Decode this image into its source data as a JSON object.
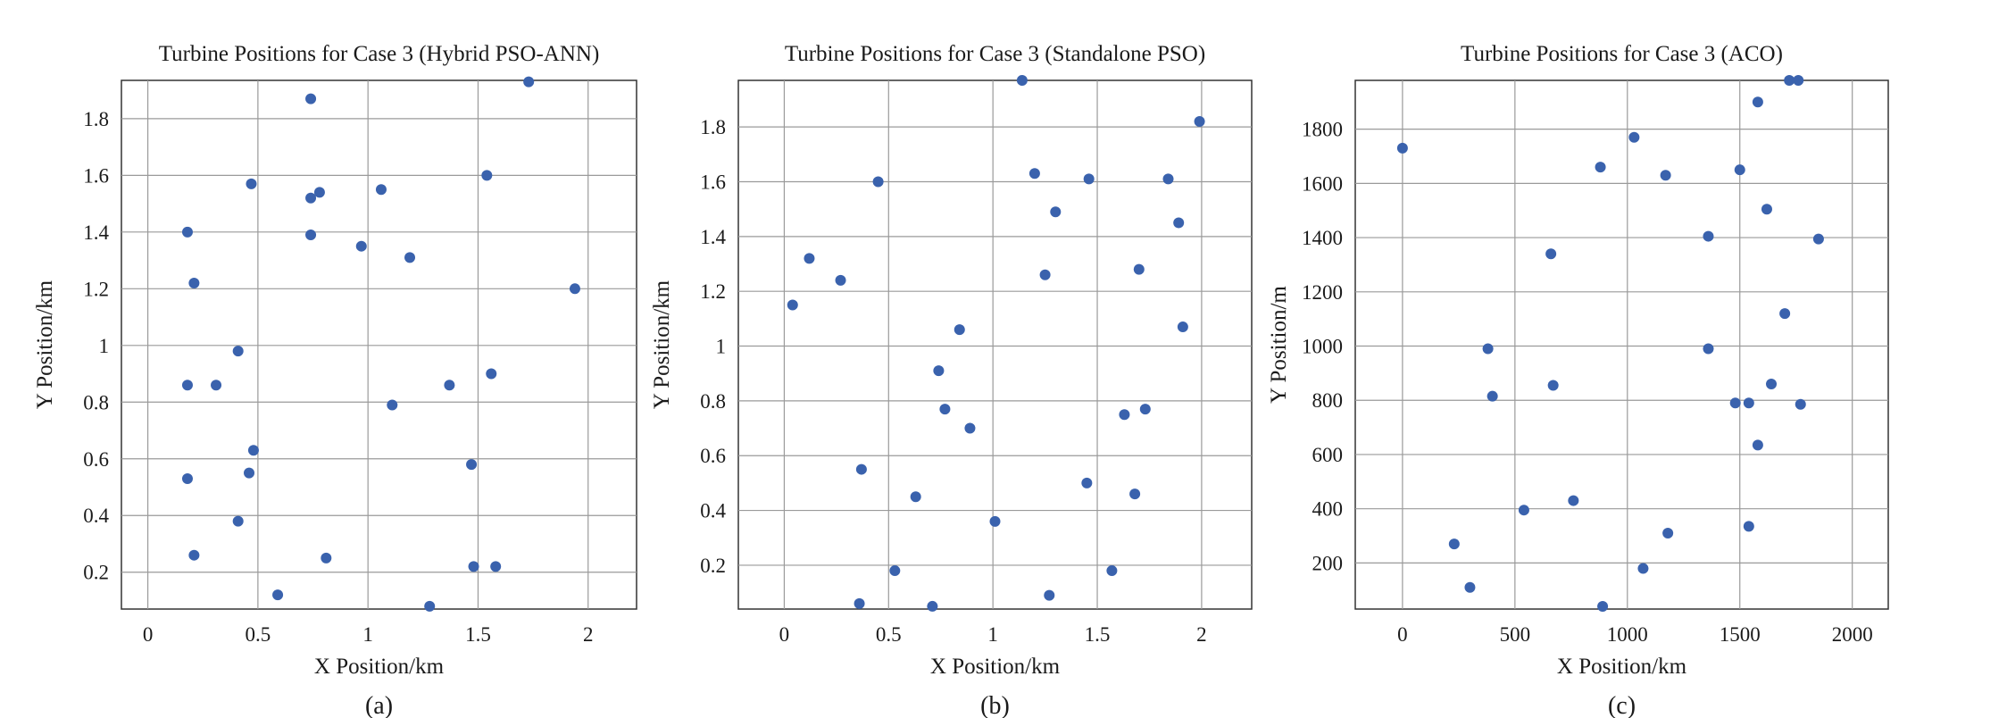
{
  "colors": {
    "point": "#3a62ad",
    "grid": "#9a9a9a",
    "frame": "#333333"
  },
  "chart_data": [
    {
      "type": "scatter",
      "title": "Turbine Positions for Case 3 (Hybrid PSO-ANN)",
      "xlabel": "X Position/km",
      "ylabel": "Y Position/km",
      "caption": "(a)",
      "xlim": [
        -0.12,
        2.22
      ],
      "ylim": [
        0.07,
        1.935
      ],
      "xticks": [
        0,
        0.5,
        1,
        1.5,
        2
      ],
      "xtick_labels": [
        "0",
        "0.5",
        "1",
        "1.5",
        "2"
      ],
      "yticks": [
        0.2,
        0.4,
        0.6,
        0.8,
        1.0,
        1.2,
        1.4,
        1.6,
        1.8
      ],
      "ytick_labels": [
        "0.2",
        "0.4",
        "0.6",
        "0.8",
        "1",
        "1.2",
        "1.4",
        "1.6",
        "1.8"
      ],
      "grid": true,
      "points": [
        [
          0.74,
          1.87
        ],
        [
          1.73,
          1.93
        ],
        [
          0.47,
          1.57
        ],
        [
          0.74,
          1.52
        ],
        [
          0.78,
          1.54
        ],
        [
          1.06,
          1.55
        ],
        [
          1.54,
          1.6
        ],
        [
          0.18,
          1.4
        ],
        [
          0.74,
          1.39
        ],
        [
          0.97,
          1.35
        ],
        [
          1.19,
          1.31
        ],
        [
          0.21,
          1.22
        ],
        [
          1.94,
          1.2
        ],
        [
          0.41,
          0.98
        ],
        [
          0.18,
          0.86
        ],
        [
          0.31,
          0.86
        ],
        [
          1.37,
          0.86
        ],
        [
          1.56,
          0.9
        ],
        [
          1.11,
          0.79
        ],
        [
          0.48,
          0.63
        ],
        [
          0.18,
          0.53
        ],
        [
          0.46,
          0.55
        ],
        [
          1.47,
          0.58
        ],
        [
          0.41,
          0.38
        ],
        [
          0.21,
          0.26
        ],
        [
          0.81,
          0.25
        ],
        [
          1.48,
          0.22
        ],
        [
          1.58,
          0.22
        ],
        [
          0.59,
          0.12
        ],
        [
          1.28,
          0.08
        ]
      ]
    },
    {
      "type": "scatter",
      "title": "Turbine Positions for Case 3 (Standalone PSO)",
      "xlabel": "X Position/km",
      "ylabel": "Y Position/km",
      "caption": "(b)",
      "xlim": [
        -0.22,
        2.24
      ],
      "ylim": [
        0.04,
        1.97
      ],
      "xticks": [
        0,
        0.5,
        1,
        1.5,
        2
      ],
      "xtick_labels": [
        "0",
        "0.5",
        "1",
        "1.5",
        "2"
      ],
      "yticks": [
        0.2,
        0.4,
        0.6,
        0.8,
        1.0,
        1.2,
        1.4,
        1.6,
        1.8
      ],
      "ytick_labels": [
        "0.2",
        "0.4",
        "0.6",
        "0.8",
        "1",
        "1.2",
        "1.4",
        "1.6",
        "1.8"
      ],
      "grid": true,
      "points": [
        [
          1.14,
          1.97
        ],
        [
          1.99,
          1.82
        ],
        [
          0.45,
          1.6
        ],
        [
          1.2,
          1.63
        ],
        [
          1.46,
          1.61
        ],
        [
          1.84,
          1.61
        ],
        [
          1.3,
          1.49
        ],
        [
          1.89,
          1.45
        ],
        [
          0.12,
          1.32
        ],
        [
          0.27,
          1.24
        ],
        [
          1.25,
          1.26
        ],
        [
          1.7,
          1.28
        ],
        [
          0.04,
          1.15
        ],
        [
          1.91,
          1.07
        ],
        [
          0.84,
          1.06
        ],
        [
          0.74,
          0.91
        ],
        [
          0.77,
          0.77
        ],
        [
          1.73,
          0.77
        ],
        [
          1.63,
          0.75
        ],
        [
          0.89,
          0.7
        ],
        [
          0.37,
          0.55
        ],
        [
          0.63,
          0.45
        ],
        [
          1.45,
          0.5
        ],
        [
          1.68,
          0.46
        ],
        [
          1.01,
          0.36
        ],
        [
          0.53,
          0.18
        ],
        [
          1.57,
          0.18
        ],
        [
          1.27,
          0.09
        ],
        [
          0.36,
          0.06
        ],
        [
          0.71,
          0.05
        ]
      ]
    },
    {
      "type": "scatter",
      "title": "Turbine Positions for Case 3 (ACO)",
      "xlabel": "X Position/km",
      "ylabel": "Y Position/m",
      "caption": "(c)",
      "xlim": [
        -210,
        2160
      ],
      "ylim": [
        30,
        1980
      ],
      "xticks": [
        0,
        500,
        1000,
        1500,
        2000
      ],
      "xtick_labels": [
        "0",
        "500",
        "1000",
        "1500",
        "2000"
      ],
      "yticks": [
        200,
        400,
        600,
        800,
        1000,
        1200,
        1400,
        1600,
        1800
      ],
      "ytick_labels": [
        "200",
        "400",
        "600",
        "800",
        "1000",
        "1200",
        "1400",
        "1600",
        "1800"
      ],
      "grid": true,
      "points": [
        [
          1720,
          1980
        ],
        [
          1760,
          1980
        ],
        [
          1580,
          1900
        ],
        [
          0,
          1730
        ],
        [
          1030,
          1770
        ],
        [
          880,
          1660
        ],
        [
          1170,
          1630
        ],
        [
          1500,
          1650
        ],
        [
          1620,
          1505
        ],
        [
          1360,
          1405
        ],
        [
          1850,
          1395
        ],
        [
          660,
          1340
        ],
        [
          1700,
          1120
        ],
        [
          380,
          990
        ],
        [
          1360,
          990
        ],
        [
          400,
          815
        ],
        [
          670,
          855
        ],
        [
          1640,
          860
        ],
        [
          1480,
          790
        ],
        [
          1540,
          790
        ],
        [
          1770,
          785
        ],
        [
          1580,
          635
        ],
        [
          760,
          430
        ],
        [
          540,
          395
        ],
        [
          230,
          270
        ],
        [
          1180,
          310
        ],
        [
          1540,
          335
        ],
        [
          300,
          110
        ],
        [
          1070,
          180
        ],
        [
          890,
          40
        ]
      ]
    }
  ]
}
